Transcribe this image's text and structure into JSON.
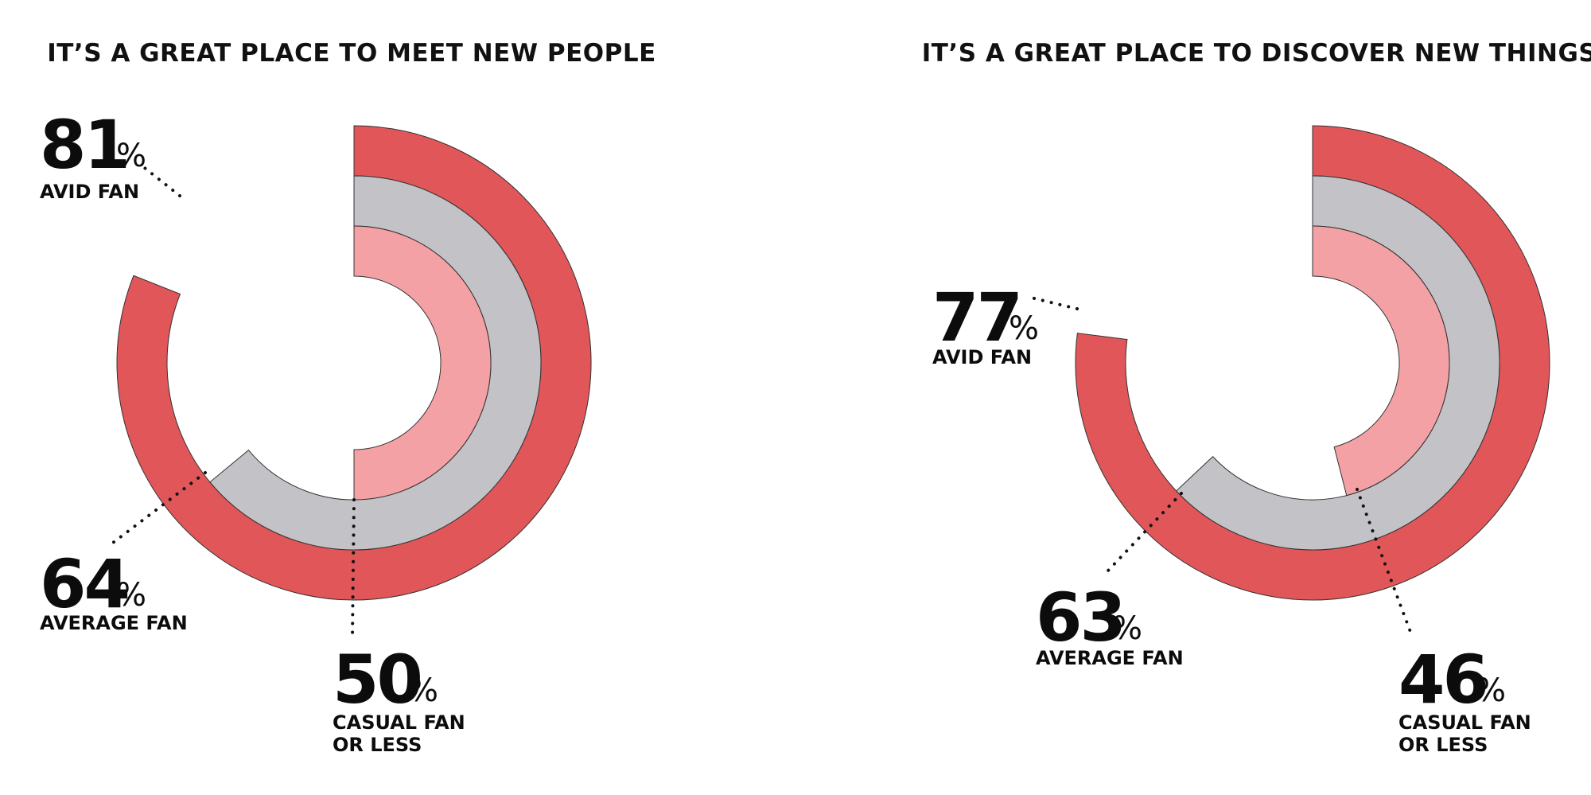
{
  "colors": {
    "avid": "#e05659",
    "average": "#c3c2c7",
    "casual": "#f4a1a5",
    "outline": "#333333"
  },
  "chart_data": [
    {
      "type": "radial-bar",
      "title": "IT’S A GREAT PLACE TO MEET NEW PEOPLE",
      "series": [
        {
          "name": "AVID FAN",
          "value": 81,
          "value_text": "81"
        },
        {
          "name": "AVERAGE FAN",
          "value": 64,
          "value_text": "64"
        },
        {
          "name": "CASUAL FAN",
          "name2": "OR LESS",
          "value": 50,
          "value_text": "50"
        }
      ],
      "unit": "%",
      "ylim": [
        0,
        100
      ]
    },
    {
      "type": "radial-bar",
      "title": "IT’S A GREAT PLACE TO DISCOVER NEW THINGS",
      "series": [
        {
          "name": "AVID FAN",
          "value": 77,
          "value_text": "77"
        },
        {
          "name": "AVERAGE FAN",
          "value": 63,
          "value_text": "63"
        },
        {
          "name": "CASUAL FAN",
          "name2": "OR LESS",
          "value": 46,
          "value_text": "46"
        }
      ],
      "unit": "%",
      "ylim": [
        0,
        100
      ]
    }
  ]
}
